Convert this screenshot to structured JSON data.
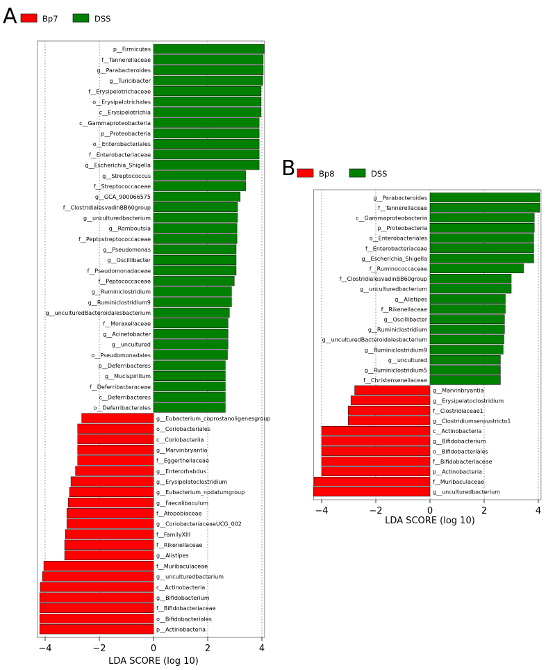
{
  "panels": {
    "a": {
      "letter": "A"
    },
    "b": {
      "letter": "B"
    }
  },
  "colors": {
    "enriched_group": "#ff0000",
    "dss": "#008000",
    "bar_border": "#000000"
  },
  "chart_data": [
    {
      "type": "bar",
      "orientation": "horizontal",
      "panel": "A",
      "xlabel": "LDA SCORE (log 10)",
      "xlim": [
        -4.3,
        4.1
      ],
      "xticks": [
        -4,
        -2,
        0,
        2,
        4
      ],
      "grid": "vertical dotted",
      "legend": {
        "placement": "top-left",
        "entries": [
          {
            "name": "Bp7",
            "color": "#ff0000"
          },
          {
            "name": "DSS",
            "color": "#008000"
          }
        ]
      },
      "series": [
        {
          "name": "Bp7",
          "color": "#ff0000"
        },
        {
          "name": "DSS",
          "color": "#008000"
        }
      ],
      "categories": [
        "p__Firmicutes",
        "f__Tannerellaceae",
        "g__Parabacteroides",
        "g__Turicibacter",
        "f__Erysipelotrichaceae",
        "o__Erysipelotrichales",
        "c__Erysipelotrichia",
        "c__Gammaproteobacteria",
        "p__Proteobacteria",
        "o__Enterobacteriales",
        "f__Enterobacteriaceae",
        "g__Escherichia_Shigella",
        "g__Streptococcus",
        "f__Streptococcaceae",
        "g__GCA_900066575",
        "f__ClostridialesvadinBB60group",
        "g__unculturedbacterium",
        "g__Romboutsia",
        "f__Peptostreptococcaceae",
        "g__Pseudomonas",
        "g__Oscillibacter",
        "f__Pseudomonadaceae",
        "f__Peptococcaceae",
        "g__Ruminiclostridium",
        "g__Ruminiclostridium9",
        "g__unculturedBacteroidalesbacterium",
        "f__Moraxellaceae",
        "g__Acinetobacter",
        "g__uncultured",
        "o__Pseudomonadales",
        "p__Deferribacteres",
        "g__Mucispirillum",
        "f__Deferribacteraceae",
        "c__Deferribacteres",
        "o__Deferribacterales",
        "g__Eubacterium_coprostanoligenesgroup",
        "o__Coriobacteriales",
        "c__Coriobacteriia",
        "g__Marvinbryantia",
        "f__Eggerthellaceae",
        "g__Enterorhabdus",
        "g__Erysipelatoclostridium",
        "g__Eubacterium_nodatumgroup",
        "g__Faecalibaculum",
        "f__Atopobiaceae",
        "g__CoriobacteriaceaeUCG_002",
        "f__FamilyXIII",
        "f__Rikenellaceae",
        "g__Alistipes",
        "f__Muribaculaceae",
        "g__unculturedbacterium",
        "c__Actinobacteria",
        "g__Bifidobacterium",
        "f__Bifidobacteriaceae",
        "o__Bifidobacteriales",
        "p__Actinobacteria"
      ],
      "values": [
        4.08,
        4.05,
        4.05,
        4.03,
        3.97,
        3.97,
        3.97,
        3.9,
        3.9,
        3.9,
        3.9,
        3.9,
        3.4,
        3.4,
        3.2,
        3.1,
        3.1,
        3.08,
        3.08,
        3.05,
        3.05,
        3.05,
        2.98,
        2.88,
        2.88,
        2.8,
        2.75,
        2.75,
        2.75,
        2.73,
        2.65,
        2.65,
        2.65,
        2.65,
        2.65,
        -2.65,
        -2.8,
        -2.8,
        -2.8,
        -2.8,
        -2.88,
        -3.05,
        -3.1,
        -3.15,
        -3.2,
        -3.2,
        -3.25,
        -3.28,
        -3.28,
        -4.05,
        -4.1,
        -4.18,
        -4.2,
        -4.2,
        -4.2,
        -4.2
      ]
    },
    {
      "type": "bar",
      "orientation": "horizontal",
      "panel": "B",
      "xlabel": "LDA SCORE (log 10)",
      "xlim": [
        -4.3,
        4.1
      ],
      "xticks": [
        -4,
        -2,
        0,
        2,
        4
      ],
      "grid": "vertical dotted",
      "legend": {
        "placement": "top-left",
        "entries": [
          {
            "name": "Bp8",
            "color": "#ff0000"
          },
          {
            "name": "DSS",
            "color": "#008000"
          }
        ]
      },
      "series": [
        {
          "name": "Bp8",
          "color": "#ff0000"
        },
        {
          "name": "DSS",
          "color": "#008000"
        }
      ],
      "categories": [
        "g__Parabacteroides",
        "f__Tannerellaceae",
        "c__Gammaproteobacteria",
        "p__Proteobacteria",
        "o__Enterobacteriales",
        "f__Enterobacteriaceae",
        "g__Escherichia_Shigella",
        "f__Ruminococcaceae",
        "f__ClostridialesvadinBB60group",
        "g__unculturedbacterium",
        "g__Alistipes",
        "f__Rikenellaceae",
        "g__Oscillibacter",
        "g__Ruminiclostridium",
        "g__unculturedBacteroidalesbacterium",
        "g__Ruminiclostridium9",
        "g__uncultured",
        "g__Ruminiclostridium5",
        "f__Christensenellaceae",
        "g__Marvinbryantia",
        "g__Erysipelatoclostridium",
        "f__Clostridiaceae1",
        "g__Clostridiumsensustricto1",
        "c__Actinobacteria",
        "g__Bifidobacterium",
        "o__Bifidobacteriales",
        "f__Bifidobacteriaceae",
        "p__Actinobacteria",
        "f__Muribaculaceae",
        "g__unculturedbacterium"
      ],
      "values": [
        4.05,
        4.05,
        3.85,
        3.85,
        3.83,
        3.83,
        3.83,
        3.45,
        3.0,
        3.0,
        2.78,
        2.78,
        2.75,
        2.75,
        2.73,
        2.7,
        2.6,
        2.6,
        2.6,
        -2.78,
        -2.92,
        -3.02,
        -3.02,
        -4.0,
        -4.0,
        -4.0,
        -4.0,
        -4.0,
        -4.28,
        -4.3
      ]
    }
  ]
}
